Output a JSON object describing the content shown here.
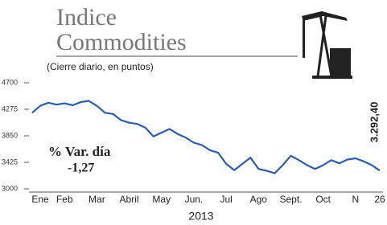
{
  "chart_data": {
    "type": "line",
    "title": [
      "Indice",
      "Commodities"
    ],
    "subtitle": "(Cierre diario, en puntos)",
    "x_label": "2013",
    "annotations": [
      "% Var. día",
      "-1,27",
      "3.292,40"
    ],
    "categories": [
      null,
      "Ene",
      null,
      null,
      "Feb",
      null,
      null,
      null,
      "Mar",
      null,
      null,
      null,
      "Abril",
      null,
      null,
      null,
      "May",
      null,
      null,
      null,
      "Jun.",
      null,
      null,
      null,
      "Jul",
      null,
      null,
      null,
      "Ago",
      null,
      null,
      null,
      "Sept.",
      null,
      null,
      null,
      "Oct",
      null,
      null,
      null,
      "N",
      null,
      null,
      "26"
    ],
    "series": [
      {
        "color": "#2a5db0",
        "values": [
          4220,
          4330,
          4380,
          4350,
          4370,
          4340,
          4390,
          4410,
          4330,
          4220,
          4200,
          4100,
          4060,
          4040,
          3980,
          3840,
          3900,
          3960,
          3880,
          3820,
          3740,
          3700,
          3620,
          3580,
          3400,
          3300,
          3400,
          3500,
          3320,
          3290,
          3250,
          3380,
          3530,
          3460,
          3380,
          3320,
          3380,
          3460,
          3410,
          3470,
          3490,
          3440,
          3380,
          3292.4
        ]
      }
    ],
    "ylim": [
      3000,
      4700
    ],
    "yticks": [
      3000,
      3425,
      3850,
      4275,
      4700
    ],
    "grid": false
  }
}
